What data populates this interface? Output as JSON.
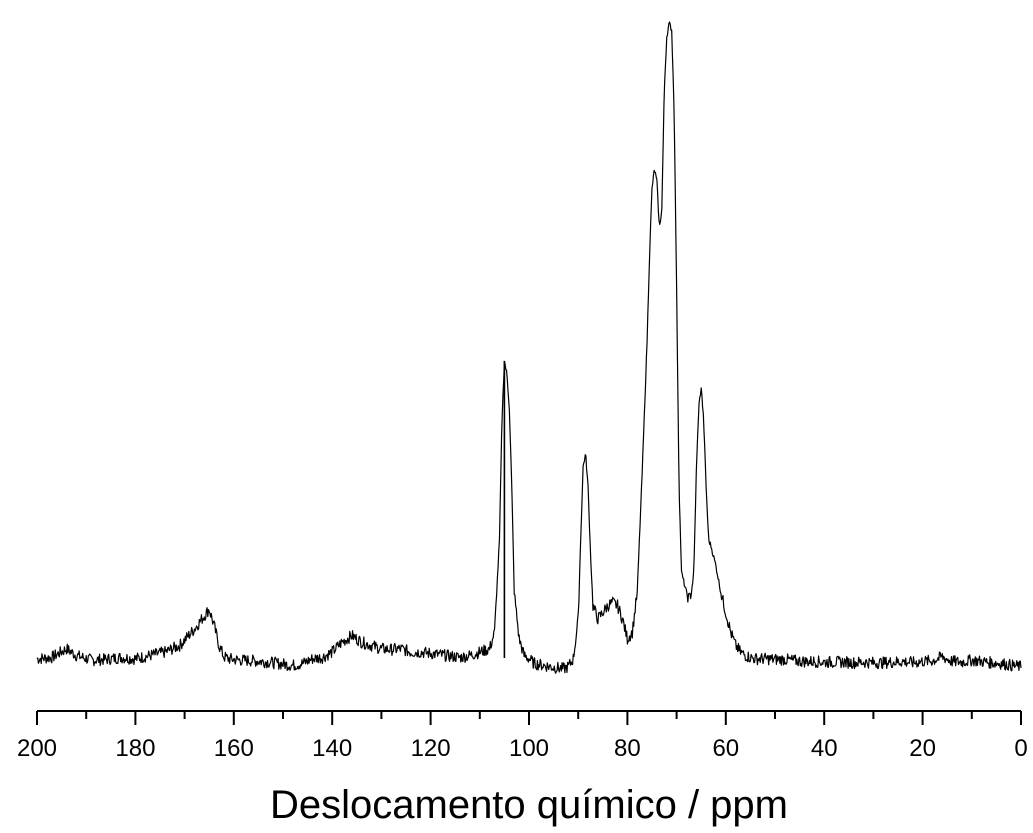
{
  "chart_data": {
    "type": "line",
    "title": "",
    "xlabel": "Deslocamento químico / ppm",
    "ylabel": "",
    "xlim": [
      200,
      0
    ],
    "ylim": [
      0,
      100
    ],
    "x_reversed": true,
    "grid": false,
    "legend": "none",
    "y_axis_visible": false,
    "line_color": "#000000",
    "x_ticks": [
      200,
      180,
      160,
      140,
      120,
      100,
      80,
      60,
      40,
      20,
      0
    ],
    "x_tick_labels": [
      "200",
      "180",
      "160",
      "140",
      "120",
      "100",
      "80",
      "60",
      "40",
      "20",
      "0"
    ],
    "x_minor_step": 10,
    "series": [
      {
        "x": [
          200,
          197,
          194,
          192,
          189,
          186,
          183,
          180,
          177,
          174,
          171,
          168,
          166,
          165,
          164,
          163,
          162,
          161,
          159,
          156,
          153,
          150,
          148,
          146,
          144,
          142,
          140,
          138,
          136,
          134,
          132,
          130,
          128,
          126,
          124,
          122,
          120,
          118,
          116,
          114,
          112,
          110,
          108,
          107,
          106,
          105.5,
          105,
          104.5,
          104,
          103.5,
          103,
          102,
          101,
          100,
          99,
          97,
          95,
          93,
          92,
          91,
          90,
          89.5,
          89,
          88.5,
          88,
          87.5,
          87,
          86,
          85,
          84,
          83,
          82,
          81,
          80,
          79,
          78,
          77,
          76,
          75.5,
          75,
          74.5,
          74,
          73.5,
          73,
          72.5,
          72,
          71.5,
          71,
          70.5,
          70,
          69.5,
          69,
          68,
          67.5,
          67,
          66.5,
          66,
          65.5,
          65,
          64.5,
          64,
          63.5,
          63,
          62,
          61,
          60,
          59,
          58,
          57,
          56,
          55,
          54,
          52,
          50,
          48,
          46,
          44,
          42,
          40,
          38,
          36,
          34,
          32,
          30,
          28,
          26,
          24,
          22,
          20,
          18,
          16,
          14,
          12,
          10,
          8,
          6,
          4,
          2,
          0
        ],
        "y": [
          2.0,
          2.2,
          3.5,
          2.5,
          1.8,
          1.9,
          2.2,
          2.0,
          2.5,
          3.0,
          4.0,
          6.5,
          8.5,
          9.5,
          7.0,
          4.0,
          2.3,
          2.0,
          1.8,
          1.7,
          1.5,
          1.2,
          1.0,
          1.3,
          2.0,
          2.2,
          3.0,
          4.5,
          5.5,
          4.5,
          4.0,
          3.5,
          3.4,
          3.5,
          3.0,
          3.0,
          2.8,
          2.6,
          2.4,
          2.2,
          2.5,
          3.0,
          3.5,
          6.0,
          20.0,
          38.0,
          47.0,
          45.0,
          40.0,
          28.0,
          12.0,
          5.0,
          2.5,
          2.0,
          1.3,
          1.0,
          0.7,
          0.5,
          0.8,
          2.0,
          8.0,
          20.0,
          31.0,
          33.0,
          28.0,
          18.0,
          10.0,
          8.0,
          9.0,
          10.0,
          10.5,
          10.0,
          8.0,
          5.0,
          6.0,
          12.0,
          30.0,
          50.0,
          63.0,
          73.0,
          76.0,
          74.0,
          67.0,
          70.0,
          88.0,
          96.0,
          98.0,
          97.0,
          85.0,
          58.0,
          28.0,
          15.0,
          12.0,
          11.0,
          12.0,
          15.0,
          30.0,
          40.0,
          43.0,
          38.0,
          28.0,
          20.0,
          19.0,
          16.0,
          12.0,
          9.0,
          6.0,
          4.0,
          3.0,
          2.5,
          2.2,
          2.0,
          2.0,
          1.9,
          1.9,
          1.7,
          1.6,
          1.6,
          1.5,
          1.5,
          1.5,
          1.4,
          1.5,
          1.4,
          1.4,
          1.5,
          1.6,
          1.4,
          1.6,
          1.7,
          2.3,
          1.6,
          1.5,
          1.8,
          1.6,
          1.4,
          1.3,
          1.0,
          0.8
        ]
      }
    ],
    "annotations": [
      {
        "type": "vertical-line",
        "x": 105,
        "y_from": 0,
        "y_to": 47
      }
    ]
  }
}
